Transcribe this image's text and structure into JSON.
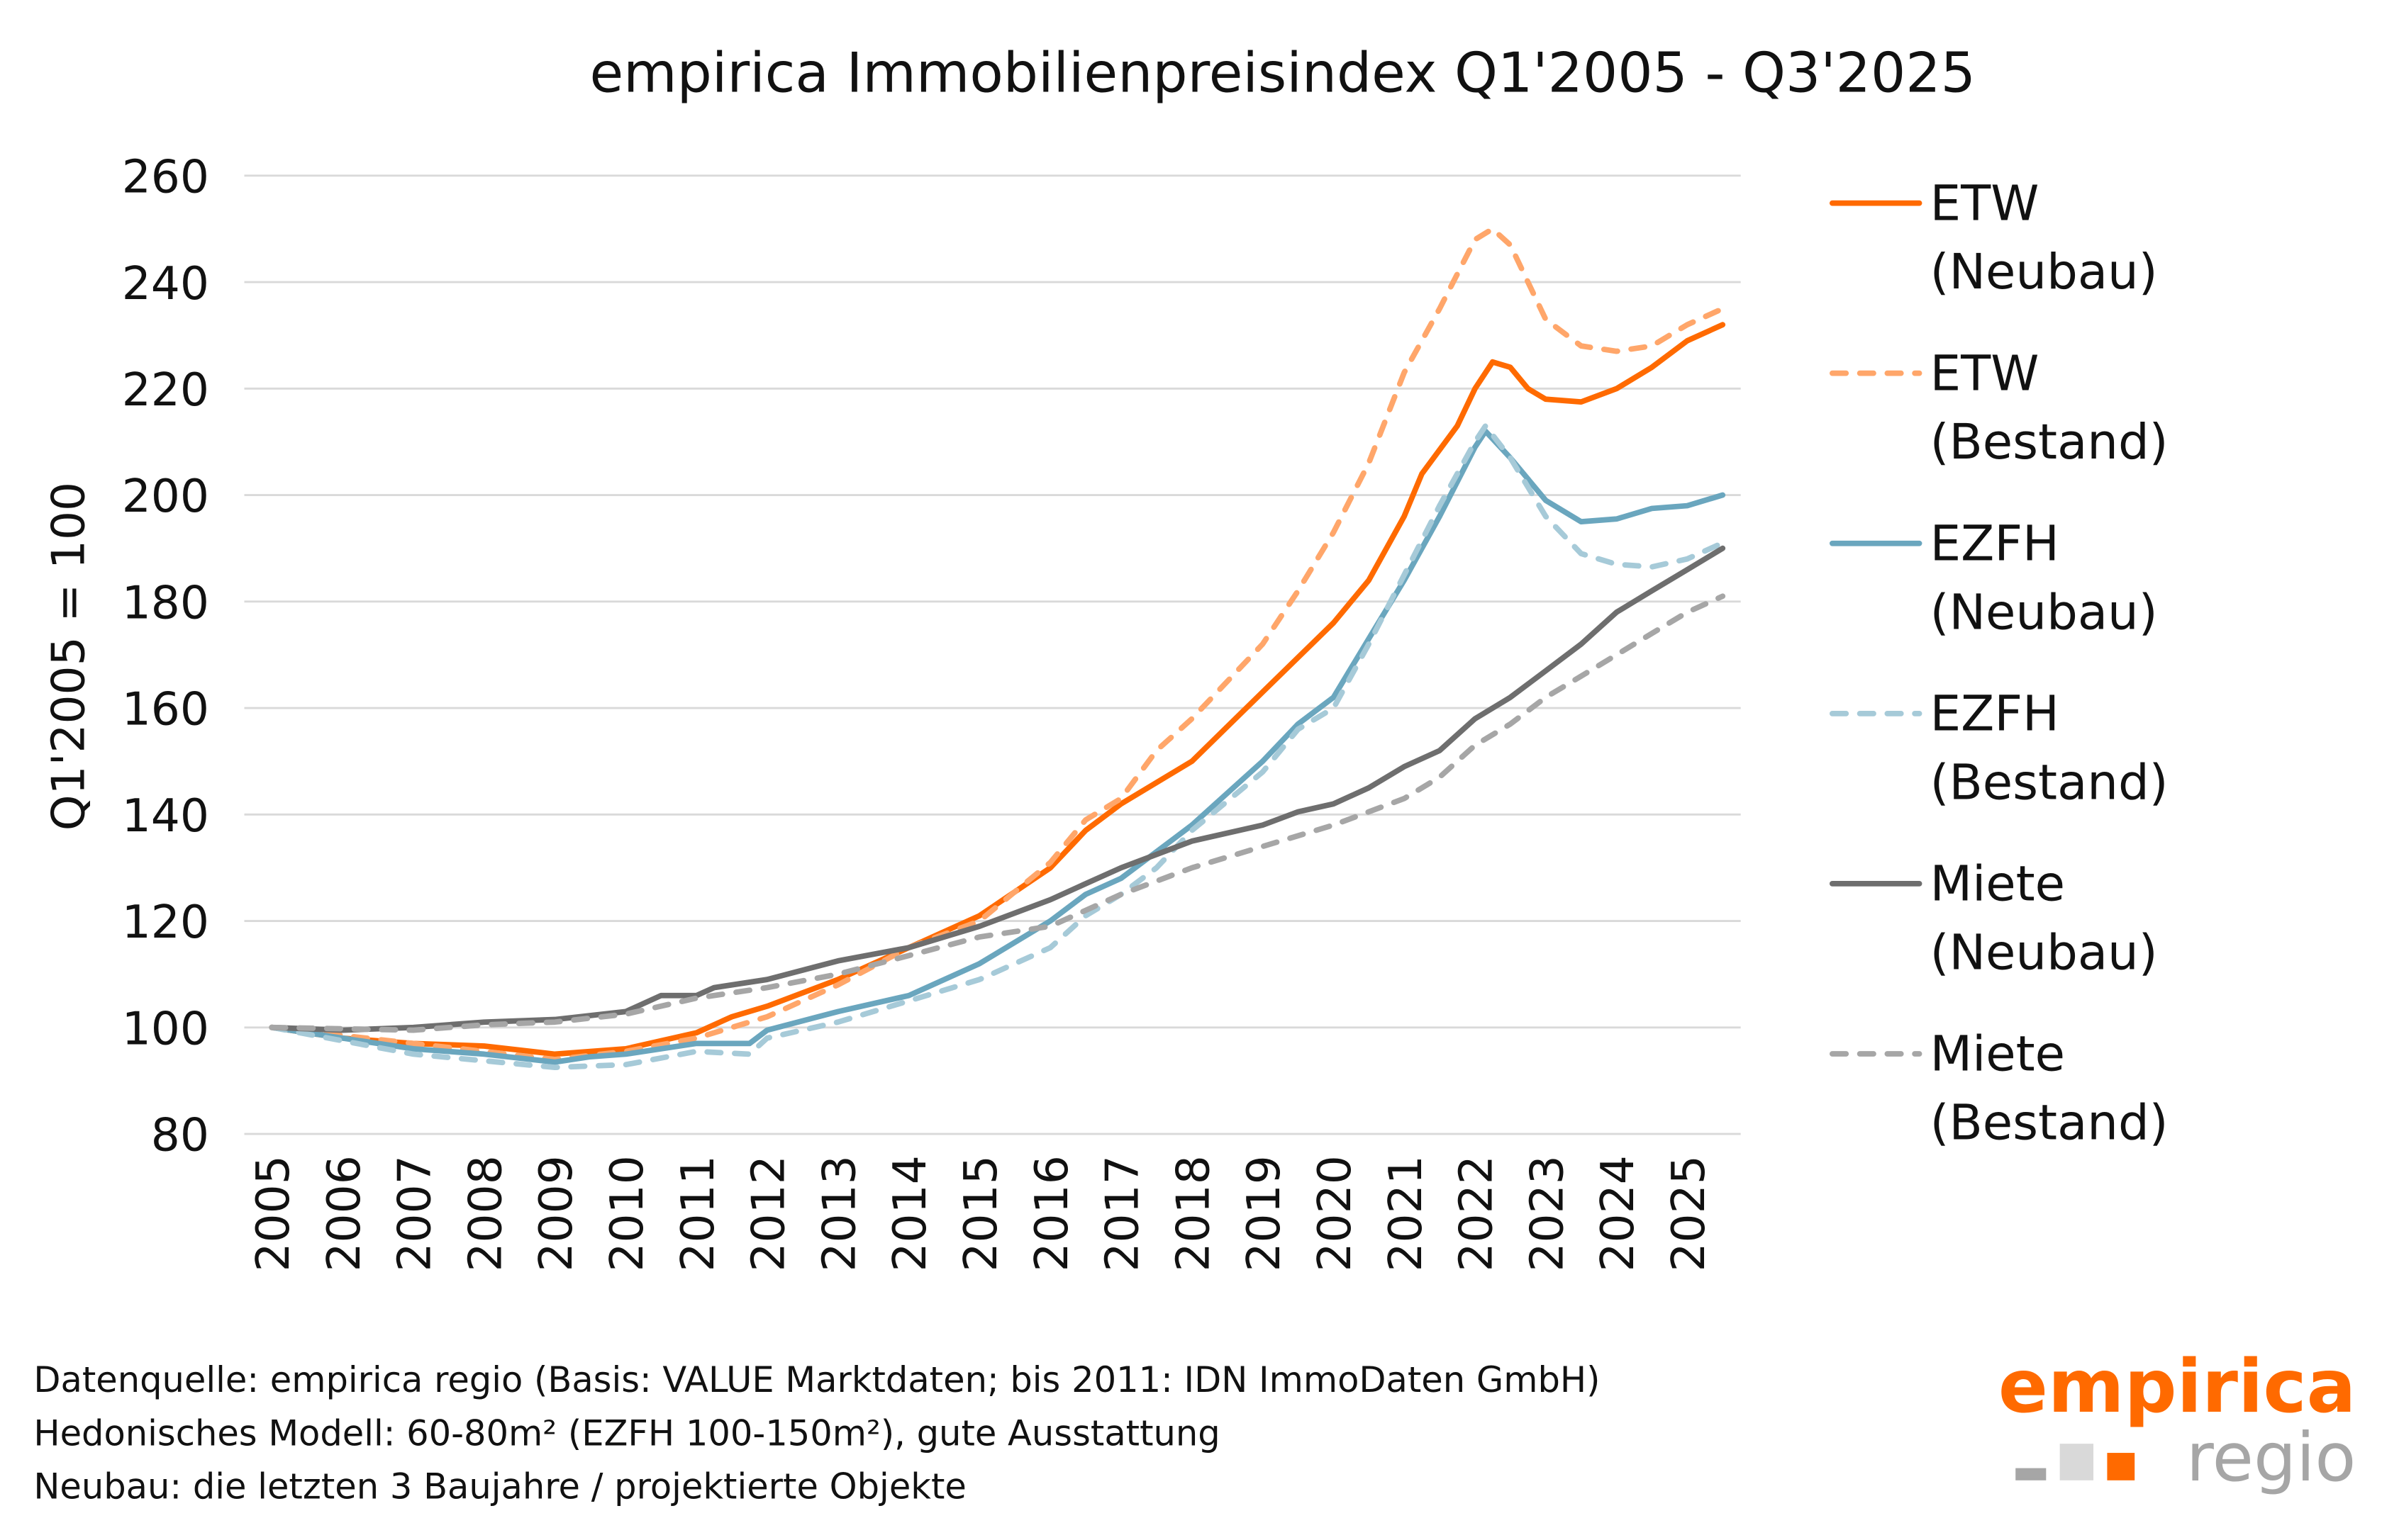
{
  "chart_data": {
    "type": "line",
    "title": "empirica Immobilienpreisindex Q1'2005 - Q3'2025",
    "xlabel": "",
    "ylabel": "Q1'2005 = 100",
    "ylim": [
      80,
      260
    ],
    "yticks": [
      80,
      100,
      120,
      140,
      160,
      180,
      200,
      220,
      240,
      260
    ],
    "xticks": [
      "2005",
      "2006",
      "2007",
      "2008",
      "2009",
      "2010",
      "2011",
      "2012",
      "2013",
      "2014",
      "2015",
      "2016",
      "2017",
      "2018",
      "2019",
      "2020",
      "2021",
      "2022",
      "2023",
      "2024",
      "2025"
    ],
    "grid": "horizontal",
    "legend_position": "right",
    "series": [
      {
        "name": "ETW (Neubau)",
        "legend_lines": [
          "ETW",
          "(Neubau)"
        ],
        "color": "#FF6A00",
        "dash": "solid",
        "x": [
          2005,
          2006,
          2007,
          2008,
          2009,
          2010,
          2011,
          2011.5,
          2012,
          2013,
          2014,
          2015,
          2016,
          2016.5,
          2017,
          2018,
          2019,
          2020,
          2020.5,
          2021,
          2021.25,
          2021.75,
          2022,
          2022.25,
          2022.5,
          2022.75,
          2023,
          2023.5,
          2024,
          2024.5,
          2025,
          2025.5
        ],
        "y": [
          100,
          98,
          97,
          96.5,
          95,
          96,
          99,
          102,
          104,
          109,
          115,
          121,
          130,
          137,
          142,
          150,
          163,
          176,
          184,
          196,
          204,
          213,
          220,
          225,
          224,
          220,
          218,
          217.5,
          220,
          224,
          229,
          232
        ]
      },
      {
        "name": "ETW (Bestand)",
        "legend_lines": [
          "ETW",
          "(Bestand)"
        ],
        "color": "#FFA66A",
        "dash": "dashed",
        "x": [
          2005,
          2007,
          2009,
          2010,
          2011,
          2012,
          2013,
          2014,
          2015,
          2016,
          2016.5,
          2017,
          2017.5,
          2018,
          2019,
          2019.5,
          2020,
          2020.5,
          2021,
          2021.5,
          2022,
          2022.25,
          2022.5,
          2022.75,
          2023,
          2023.5,
          2024,
          2024.5,
          2025,
          2025.5
        ],
        "y": [
          100,
          97,
          94,
          95.5,
          98,
          102,
          108,
          115,
          120,
          131,
          139,
          143,
          152,
          158,
          172,
          182,
          193,
          206,
          223,
          235,
          248,
          250,
          247,
          240,
          233,
          228,
          227,
          228,
          232,
          235
        ]
      },
      {
        "name": "EZFH (Neubau)",
        "legend_lines": [
          "EZFH",
          "(Neubau)"
        ],
        "color": "#6AA6BE",
        "dash": "solid",
        "x": [
          2005,
          2006,
          2007,
          2008,
          2009,
          2009.5,
          2010,
          2011,
          2011.75,
          2012,
          2013,
          2014,
          2015,
          2016,
          2016.5,
          2017,
          2017.5,
          2018,
          2019,
          2019.5,
          2020,
          2020.5,
          2021,
          2021.5,
          2022,
          2022.15,
          2022.5,
          2023,
          2023.5,
          2024,
          2024.5,
          2025,
          2025.5
        ],
        "y": [
          100,
          98,
          96,
          95,
          93.5,
          94.5,
          95,
          97,
          97,
          99.5,
          103,
          106,
          112,
          120,
          125,
          128,
          133,
          138,
          150,
          157,
          162,
          173,
          184,
          196,
          209,
          212,
          207,
          199,
          195,
          195.5,
          197.5,
          198,
          200
        ]
      },
      {
        "name": "EZFH (Bestand)",
        "legend_lines": [
          "EZFH",
          "(Bestand)"
        ],
        "color": "#A6CAD8",
        "dash": "dashed",
        "x": [
          2005,
          2007,
          2009,
          2010,
          2011,
          2011.75,
          2012,
          2013,
          2014,
          2015,
          2016,
          2016.5,
          2017,
          2017.5,
          2018,
          2019,
          2019.5,
          2020,
          2020.5,
          2021,
          2021.5,
          2022,
          2022.15,
          2022.5,
          2023,
          2023.5,
          2024,
          2024.5,
          2025,
          2025.5
        ],
        "y": [
          100,
          95,
          92.5,
          93,
          95.5,
          95,
          98,
          101,
          105,
          109,
          115,
          121,
          125,
          130,
          137,
          148,
          156,
          160,
          172,
          185,
          198,
          210,
          213,
          207,
          196,
          189,
          187,
          186.5,
          188,
          191
        ]
      },
      {
        "name": "Miete (Neubau)",
        "legend_lines": [
          "Miete",
          "(Neubau)"
        ],
        "color": "#6E6E6E",
        "dash": "solid",
        "x": [
          2005,
          2006,
          2007,
          2008,
          2009,
          2010,
          2010.5,
          2011,
          2011.25,
          2012,
          2013,
          2014,
          2015,
          2016,
          2016.5,
          2017,
          2018,
          2019,
          2019.5,
          2020,
          2020.5,
          2021,
          2021.5,
          2022,
          2022.5,
          2023,
          2023.5,
          2024,
          2024.5,
          2025,
          2025.5
        ],
        "y": [
          100,
          99.5,
          100,
          101,
          101.5,
          103,
          106,
          106,
          107.5,
          109,
          112.5,
          115,
          119,
          124,
          127,
          130,
          135,
          138,
          140.5,
          142,
          145,
          149,
          152,
          158,
          162,
          167,
          172,
          178,
          182,
          186,
          190
        ]
      },
      {
        "name": "Miete (Bestand)",
        "legend_lines": [
          "Miete",
          "(Bestand)"
        ],
        "color": "#A6A6A6",
        "dash": "dashed",
        "x": [
          2005,
          2007,
          2008,
          2009,
          2010,
          2011,
          2012,
          2013,
          2014,
          2015,
          2016,
          2017,
          2018,
          2019,
          2020,
          2021,
          2021.5,
          2022,
          2022.5,
          2023,
          2023.5,
          2024,
          2024.5,
          2025,
          2025.5
        ],
        "y": [
          100,
          99.5,
          100.5,
          101,
          102.5,
          105.5,
          107.5,
          110,
          113.5,
          117,
          119,
          125,
          130,
          134,
          138,
          143,
          147,
          153,
          157,
          162,
          166,
          170,
          174,
          178,
          181
        ]
      }
    ]
  },
  "footer": {
    "lines": [
      "Datenquelle: empirica regio (Basis: VALUE Marktdaten; bis 2011: IDN ImmoDaten GmbH)",
      "Hedonisches Modell: 60-80m² (EZFH 100-150m²), gute Ausstattung",
      "Neubau: die letzten 3 Baujahre / projektierte Objekte"
    ]
  },
  "logo": {
    "word1": "empirica",
    "word2": "regio",
    "orange": "#FF6A00",
    "gray": "#A6A6A6"
  }
}
